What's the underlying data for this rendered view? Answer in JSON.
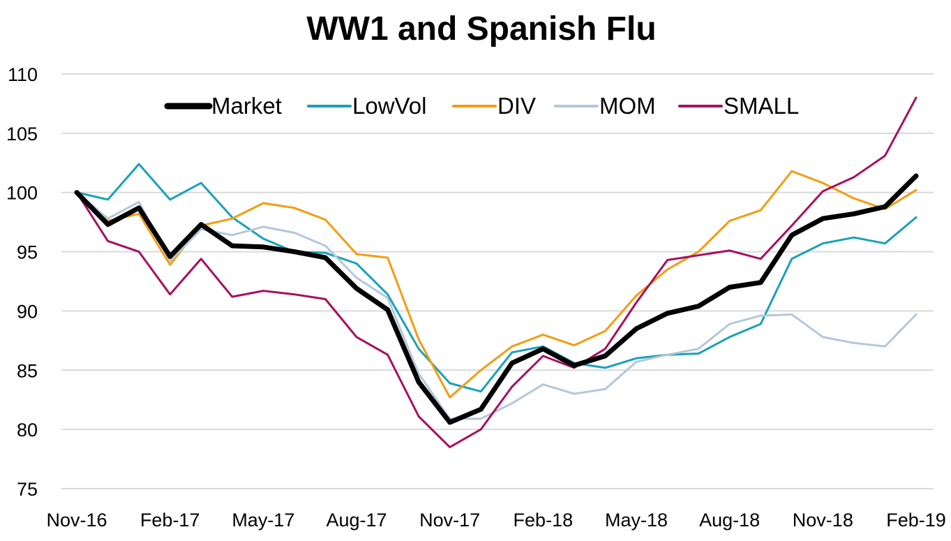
{
  "chart_data": {
    "type": "line",
    "title": "WW1 and Spanish Flu",
    "xlabel": "",
    "ylabel": "",
    "ylim": [
      75,
      110
    ],
    "yticks": [
      75,
      80,
      85,
      90,
      95,
      100,
      105,
      110
    ],
    "x": [
      "Nov-16",
      "Dec-16",
      "Jan-17",
      "Feb-17",
      "Mar-17",
      "Apr-17",
      "May-17",
      "Jun-17",
      "Jul-17",
      "Aug-17",
      "Sep-17",
      "Oct-17",
      "Nov-17",
      "Dec-17",
      "Jan-18",
      "Feb-18",
      "Mar-18",
      "Apr-18",
      "May-18",
      "Jun-18",
      "Jul-18",
      "Aug-18",
      "Sep-18",
      "Oct-18",
      "Nov-18",
      "Dec-18",
      "Jan-19",
      "Feb-19"
    ],
    "xtick_labels": [
      "Nov-16",
      "Feb-17",
      "May-17",
      "Aug-17",
      "Nov-17",
      "Feb-18",
      "May-18",
      "Aug-18",
      "Nov-18",
      "Feb-19"
    ],
    "grid": true,
    "legend_position": "top",
    "series": [
      {
        "name": "Market",
        "color": "#000000",
        "width": 7,
        "values": [
          100.0,
          97.3,
          98.7,
          94.6,
          97.3,
          95.5,
          95.4,
          95.0,
          94.5,
          91.9,
          90.1,
          84.0,
          80.6,
          81.7,
          85.6,
          86.8,
          85.4,
          86.2,
          88.5,
          89.8,
          90.4,
          92.0,
          92.4,
          96.4,
          97.8,
          98.2,
          98.8,
          101.4
        ]
      },
      {
        "name": "LowVol",
        "color": "#17a2b8",
        "width": 3,
        "values": [
          100.0,
          99.4,
          102.4,
          99.4,
          100.8,
          97.9,
          96.1,
          95.0,
          94.9,
          94.0,
          91.4,
          86.8,
          83.9,
          83.2,
          86.5,
          87.0,
          85.6,
          85.2,
          86.0,
          86.3,
          86.4,
          87.8,
          88.9,
          94.4,
          95.7,
          96.2,
          95.7,
          97.9
        ]
      },
      {
        "name": "DIV",
        "color": "#f39c12",
        "width": 3,
        "values": [
          100.0,
          97.6,
          98.2,
          93.9,
          97.2,
          97.8,
          99.1,
          98.7,
          97.7,
          94.8,
          94.5,
          87.6,
          82.7,
          85.0,
          87.0,
          88.0,
          87.1,
          88.3,
          91.3,
          93.5,
          95.0,
          97.6,
          98.5,
          101.8,
          100.8,
          99.5,
          98.6,
          100.2
        ]
      },
      {
        "name": "MOM",
        "color": "#b4c7d9",
        "width": 3,
        "values": [
          100.0,
          97.8,
          99.2,
          94.2,
          96.9,
          96.4,
          97.1,
          96.6,
          95.5,
          92.8,
          91.1,
          84.7,
          80.9,
          80.9,
          82.2,
          83.8,
          83.0,
          83.4,
          85.7,
          86.3,
          86.8,
          88.9,
          89.6,
          89.7,
          87.8,
          87.3,
          87.0,
          89.7
        ]
      },
      {
        "name": "SMALL",
        "color": "#a80f5f",
        "width": 3,
        "values": [
          100.0,
          95.9,
          95.0,
          91.4,
          94.4,
          91.2,
          91.7,
          91.4,
          91.0,
          87.8,
          86.3,
          81.1,
          78.5,
          80.0,
          83.6,
          86.2,
          85.2,
          86.8,
          90.7,
          94.3,
          94.7,
          95.1,
          94.4,
          97.2,
          100.1,
          101.3,
          103.1,
          108.0
        ]
      }
    ]
  }
}
